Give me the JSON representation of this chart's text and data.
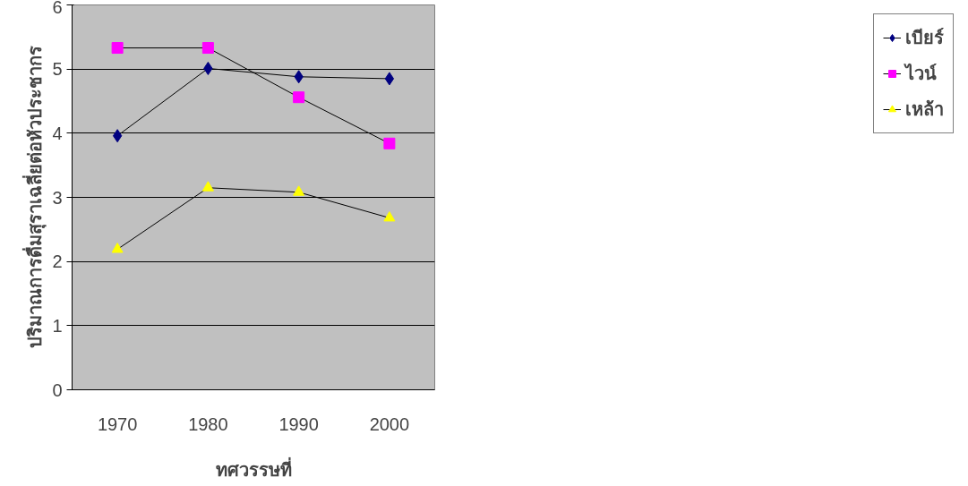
{
  "chart_data": {
    "type": "line",
    "xlabel": "ทศวรรษที่",
    "ylabel": "ปริมาณการดื่มสุราเฉลี่ยต่อหัวประชากร",
    "categories": [
      "1970",
      "1980",
      "1990",
      "2000"
    ],
    "series": [
      {
        "name": "เบียร์",
        "color": "#000080",
        "marker": "diamond",
        "values": [
          3.96,
          5.01,
          4.88,
          4.85
        ]
      },
      {
        "name": "ไวน์",
        "color": "#ff00ff",
        "marker": "square",
        "values": [
          5.33,
          5.33,
          4.56,
          3.84
        ]
      },
      {
        "name": "เหล้า",
        "color": "#ffff00",
        "marker": "triangle",
        "values": [
          2.19,
          3.15,
          3.08,
          2.68
        ]
      }
    ],
    "ylim": [
      0,
      6
    ],
    "yticks": [
      0,
      1,
      2,
      3,
      4,
      5,
      6
    ],
    "grid": "y",
    "legend": "right"
  }
}
